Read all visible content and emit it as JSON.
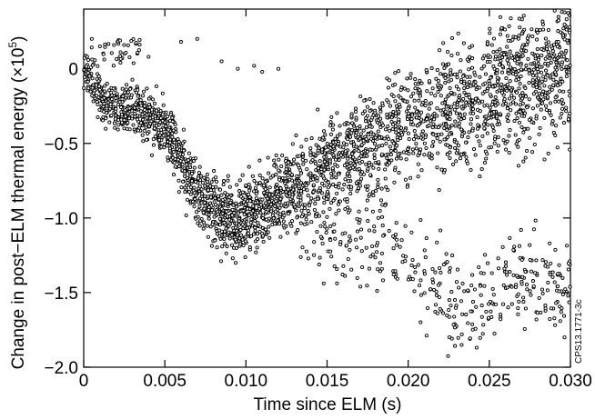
{
  "chart_data": {
    "type": "scatter",
    "title": "",
    "xlabel": "Time since ELM (s)",
    "ylabel": "Change in post−ELM thermal energy (×10",
    "ylabel_exponent": "5",
    "ylabel_suffix": ")",
    "xlim": [
      0,
      0.03
    ],
    "ylim": [
      -2.0,
      0.4
    ],
    "x_ticks": [
      0,
      0.005,
      0.01,
      0.015,
      0.02,
      0.025,
      0.03
    ],
    "x_tick_labels": [
      "0",
      "0.005",
      "0.010",
      "0.015",
      "0.020",
      "0.025",
      "0.030"
    ],
    "y_ticks": [
      0,
      -0.5,
      -1.0,
      -1.5,
      -2.0
    ],
    "y_tick_labels": [
      "0",
      "−0.5",
      "−1.0",
      "−1.5",
      "−2.0"
    ],
    "grid": false,
    "marker": "open-circle",
    "marker_color": "#000000",
    "side_label": "CPS13.1771-3c",
    "series": [
      {
        "trend_points": [
          [
            0.0,
            0.0
          ],
          [
            0.0005,
            -0.1
          ],
          [
            0.001,
            -0.18
          ],
          [
            0.0015,
            -0.23
          ],
          [
            0.002,
            -0.26
          ],
          [
            0.003,
            -0.28
          ],
          [
            0.004,
            -0.3
          ],
          [
            0.005,
            -0.4
          ],
          [
            0.0055,
            -0.48
          ],
          [
            0.006,
            -0.62
          ],
          [
            0.0065,
            -0.75
          ],
          [
            0.007,
            -0.84
          ],
          [
            0.008,
            -0.93
          ],
          [
            0.009,
            -0.99
          ],
          [
            0.01,
            -0.98
          ],
          [
            0.011,
            -0.93
          ],
          [
            0.012,
            -0.86
          ],
          [
            0.013,
            -0.79
          ],
          [
            0.014,
            -0.72
          ],
          [
            0.015,
            -0.65
          ],
          [
            0.016,
            -0.58
          ],
          [
            0.017,
            -0.52
          ],
          [
            0.018,
            -0.47
          ],
          [
            0.019,
            -0.43
          ],
          [
            0.02,
            -0.38
          ],
          [
            0.021,
            -0.33
          ],
          [
            0.022,
            -0.29
          ],
          [
            0.023,
            -0.25
          ],
          [
            0.024,
            -0.21
          ],
          [
            0.025,
            -0.16
          ],
          [
            0.026,
            -0.12
          ],
          [
            0.027,
            -0.08
          ],
          [
            0.028,
            -0.05
          ],
          [
            0.029,
            -0.02
          ],
          [
            0.03,
            0.02
          ]
        ],
        "lower_branch_points": [
          [
            0.013,
            -0.95
          ],
          [
            0.015,
            -1.05
          ],
          [
            0.017,
            -1.15
          ],
          [
            0.019,
            -1.25
          ],
          [
            0.02,
            -1.35
          ],
          [
            0.021,
            -1.45
          ],
          [
            0.022,
            -1.52
          ],
          [
            0.023,
            -1.6
          ],
          [
            0.024,
            -1.62
          ],
          [
            0.025,
            -1.55
          ],
          [
            0.026,
            -1.45
          ],
          [
            0.027,
            -1.38
          ],
          [
            0.028,
            -1.4
          ],
          [
            0.029,
            -1.45
          ],
          [
            0.03,
            -1.4
          ]
        ],
        "upper_outliers": [
          [
            0.0005,
            0.2
          ],
          [
            0.001,
            0.15
          ],
          [
            0.0025,
            0.1
          ],
          [
            0.004,
            0.08
          ],
          [
            0.006,
            0.18
          ],
          [
            0.007,
            0.2
          ],
          [
            0.0085,
            0.05
          ],
          [
            0.0095,
            0.0
          ],
          [
            0.0105,
            0.02
          ],
          [
            0.011,
            -0.02
          ],
          [
            0.012,
            0.0
          ]
        ],
        "point_count": 3200
      }
    ]
  }
}
